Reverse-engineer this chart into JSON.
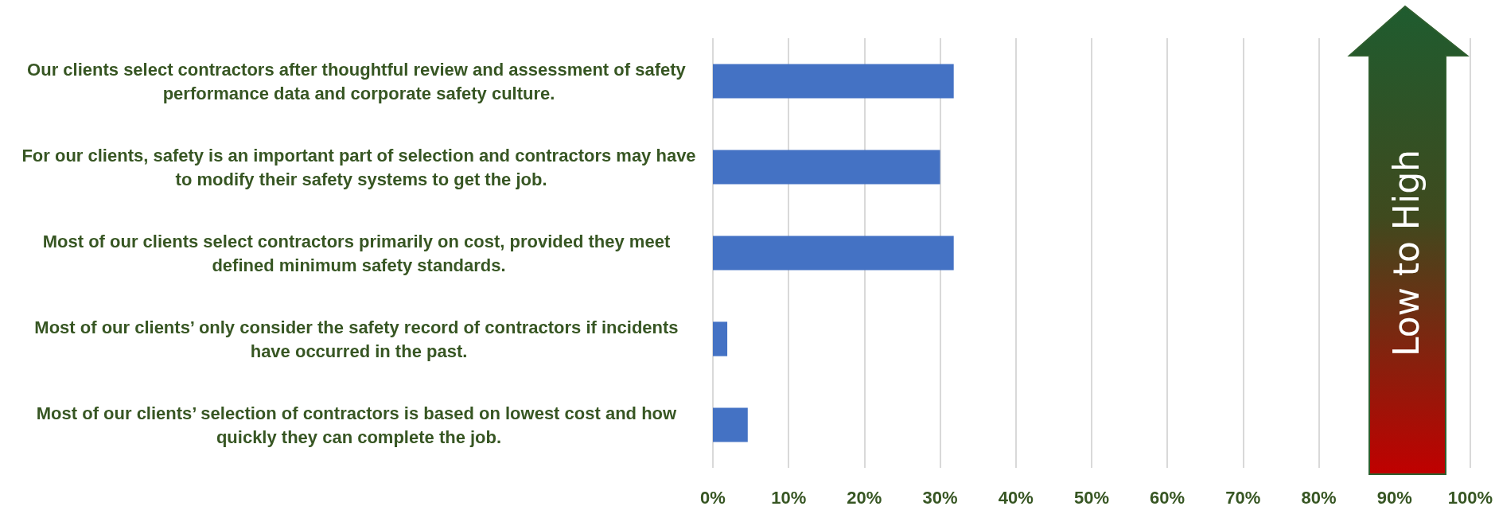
{
  "chart_data": {
    "type": "bar",
    "orientation": "horizontal",
    "categories": [
      "Our clients select contractors after thoughtful review and assessment of safety performance data and corporate safety culture.",
      "For our clients, safety is an important part of selection and contractors may have to modify their safety systems to get the job.",
      "Most of our clients select contractors primarily on cost, provided they meet defined minimum safety standards.",
      "Most of our clients’ only consider the safety record of contractors if incidents have occurred in the past.",
      "Most of our clients’ selection of contractors is based on lowest cost and how quickly they can complete the job."
    ],
    "values": [
      31.8,
      30.0,
      31.8,
      1.9,
      4.6
    ],
    "color": "#4472c4",
    "xlim": [
      0,
      100
    ],
    "xticks": [
      {
        "value": 0,
        "label": "0%"
      },
      {
        "value": 10,
        "label": "10%"
      },
      {
        "value": 20,
        "label": "20%"
      },
      {
        "value": 30,
        "label": "30%"
      },
      {
        "value": 40,
        "label": "40%"
      },
      {
        "value": 50,
        "label": "50%"
      },
      {
        "value": 60,
        "label": "60%"
      },
      {
        "value": 70,
        "label": "70%"
      },
      {
        "value": 80,
        "label": "80%"
      },
      {
        "value": 90,
        "label": "90%"
      },
      {
        "value": 100,
        "label": "100%"
      }
    ],
    "grid": "x",
    "annotations": [
      "Low to High"
    ]
  }
}
